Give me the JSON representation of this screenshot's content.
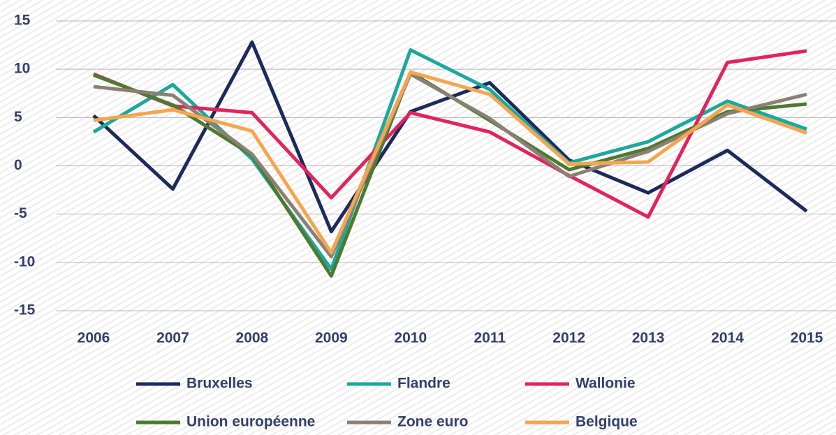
{
  "chart_data": {
    "type": "line",
    "categories": [
      "2006",
      "2007",
      "2008",
      "2009",
      "2010",
      "2011",
      "2012",
      "2013",
      "2014",
      "2015"
    ],
    "series": [
      {
        "name": "Bruxelles",
        "color": "#1c2a5c",
        "values": [
          5.2,
          -2.4,
          12.8,
          -6.8,
          5.6,
          8.6,
          0.6,
          -2.8,
          1.6,
          -4.7
        ]
      },
      {
        "name": "Flandre",
        "color": "#1aa99c",
        "values": [
          3.5,
          8.4,
          0.7,
          -10.7,
          12.0,
          7.9,
          0.3,
          2.5,
          6.7,
          3.8
        ]
      },
      {
        "name": "Wallonie",
        "color": "#e2245c",
        "values": [
          9.5,
          6.2,
          5.5,
          -3.3,
          5.5,
          3.5,
          -1.0,
          -5.3,
          10.7,
          11.9
        ]
      },
      {
        "name": "Union européenne",
        "color": "#4e7a2f",
        "values": [
          9.4,
          6.3,
          1.1,
          -11.4,
          9.7,
          4.7,
          -0.4,
          1.8,
          5.6,
          6.4
        ]
      },
      {
        "name": "Zone euro",
        "color": "#8b8074",
        "values": [
          8.2,
          7.3,
          1.2,
          -9.4,
          9.5,
          4.9,
          -1.1,
          1.5,
          5.4,
          7.4
        ]
      },
      {
        "name": "Belgique",
        "color": "#f6a54e",
        "values": [
          4.7,
          5.8,
          3.6,
          -9.0,
          9.7,
          7.4,
          0.2,
          0.4,
          6.3,
          3.4
        ]
      }
    ],
    "ylim": [
      -15,
      15
    ],
    "yticks": [
      -15,
      -10,
      -5,
      0,
      5,
      10,
      15
    ],
    "grid": true,
    "legend": "bottom"
  }
}
